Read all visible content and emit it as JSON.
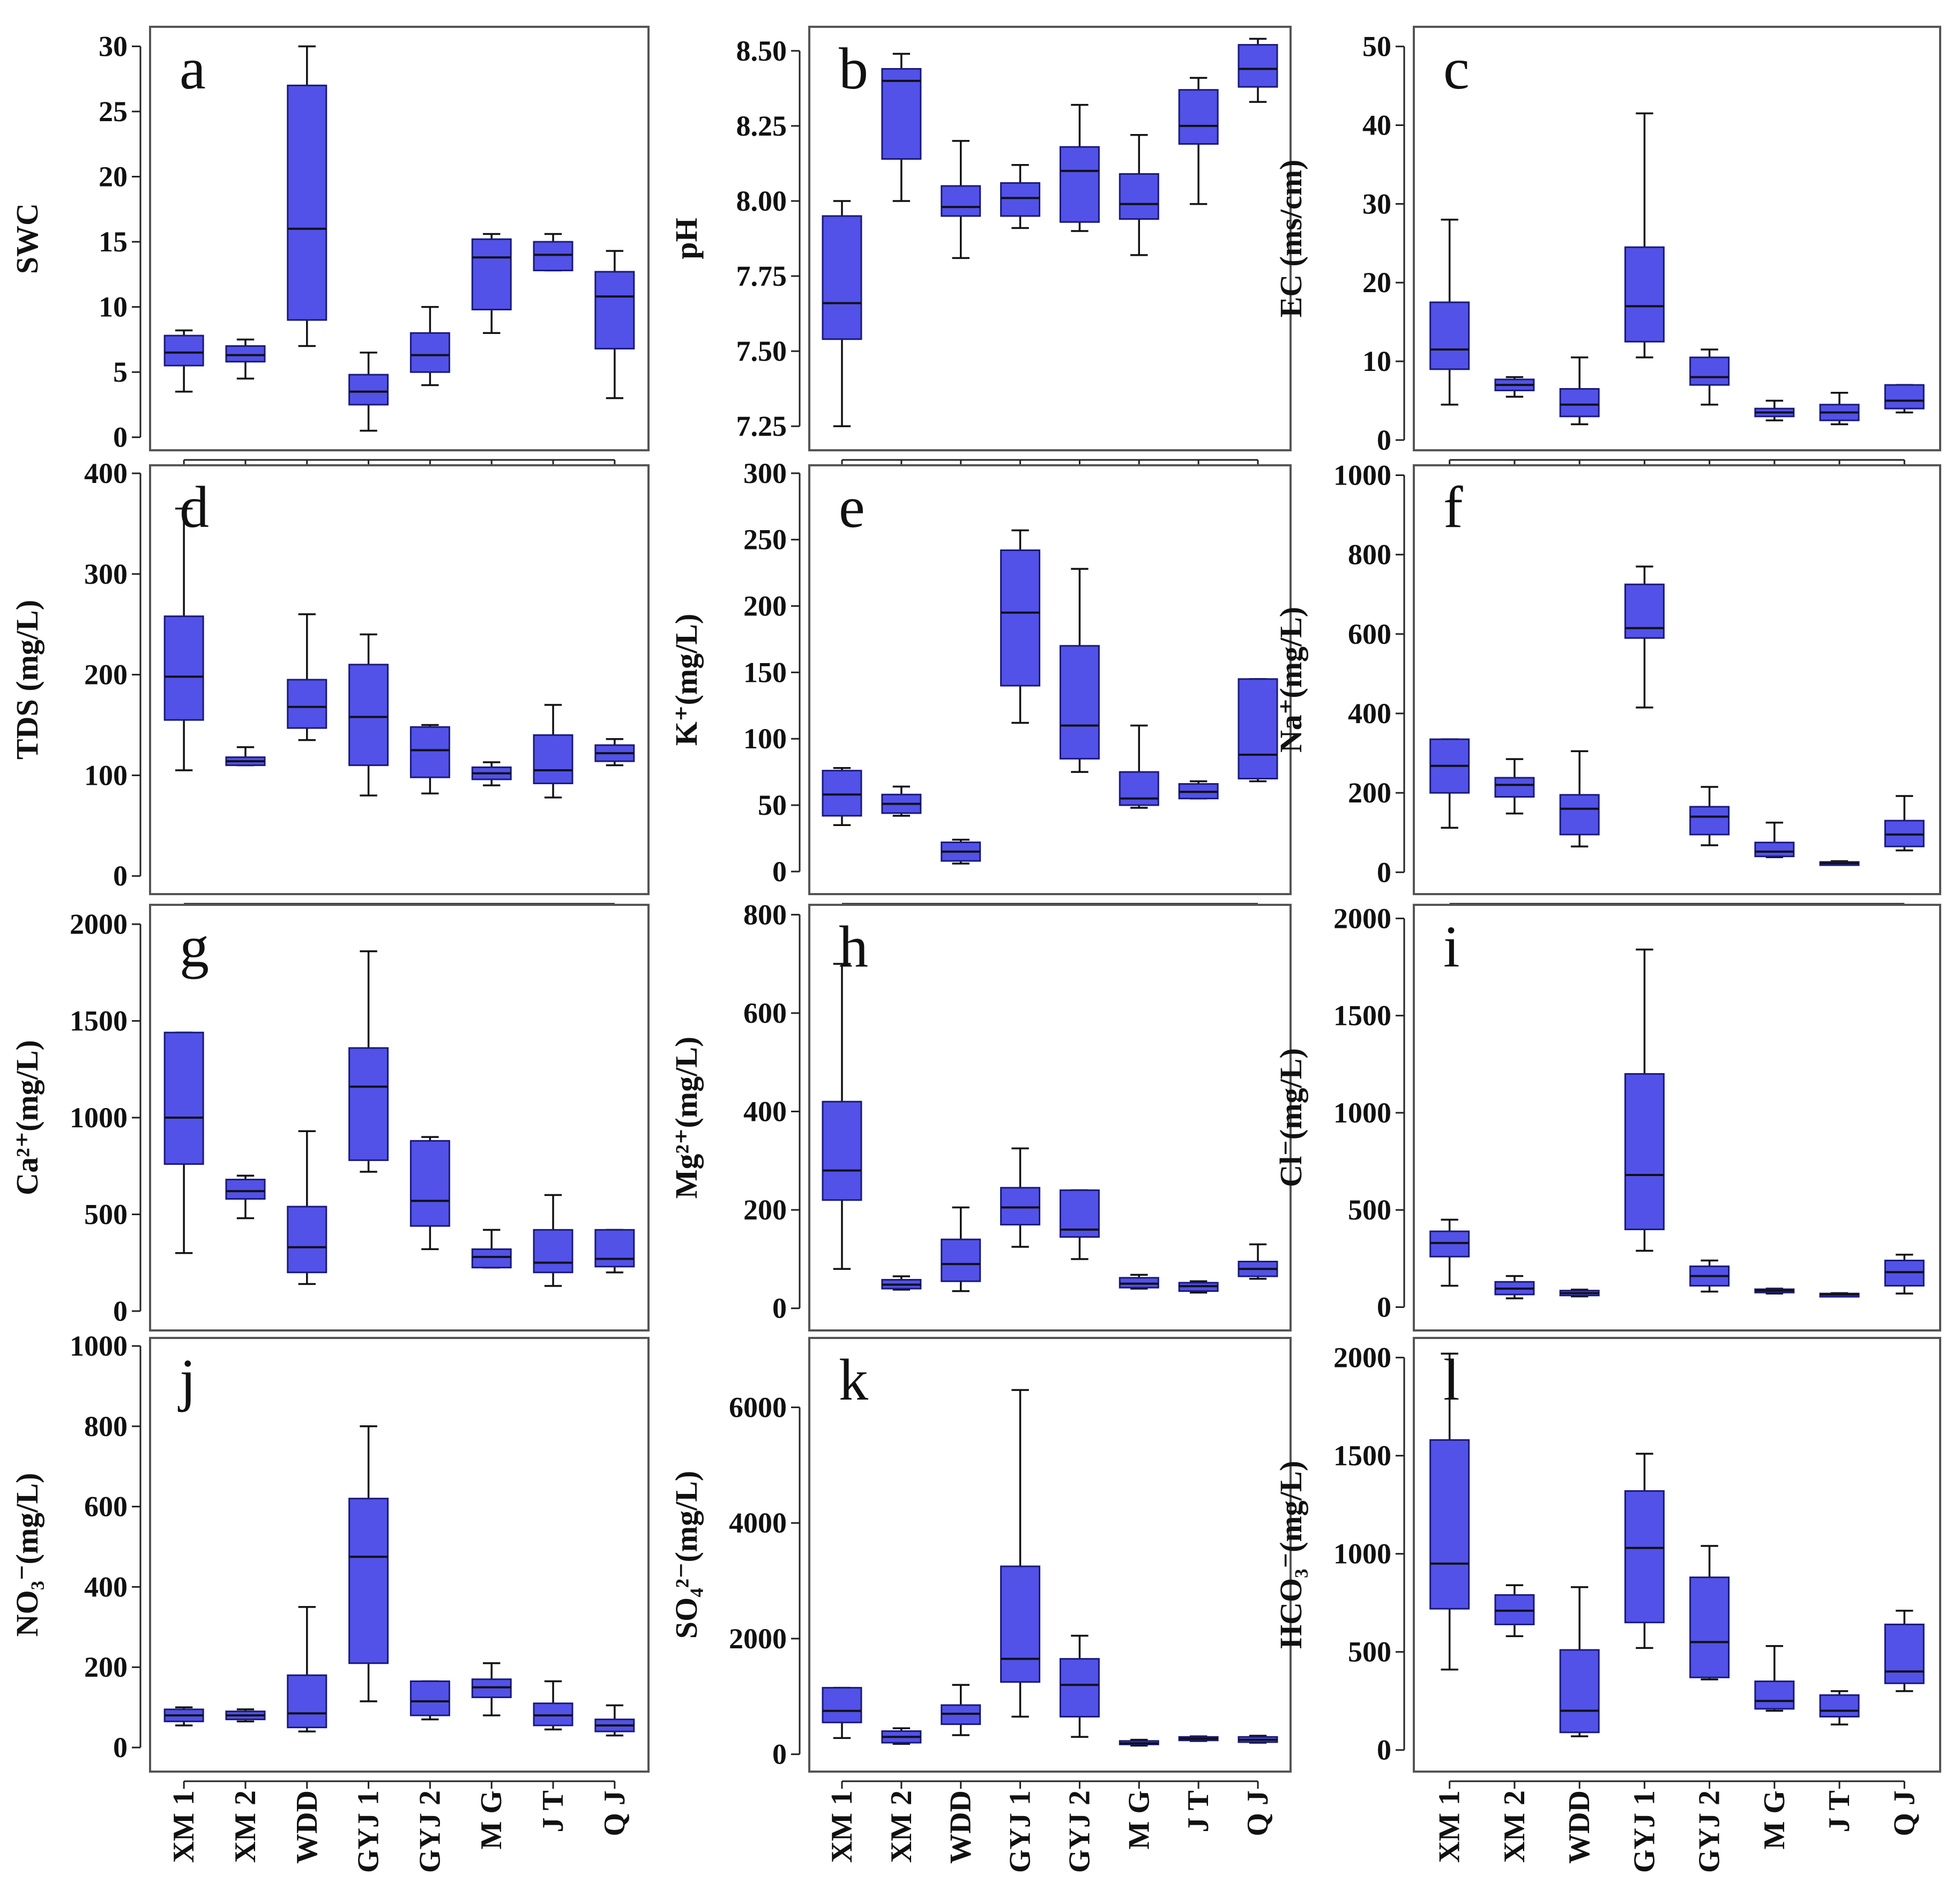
{
  "figure": {
    "box_color": "#5252E8",
    "box_edge_color": "#1A1A7A"
  },
  "chart_data": [
    {
      "type": "box",
      "panel": "a",
      "ylabel": "SWC",
      "yticks": [
        "0",
        "5",
        "10",
        "15",
        "20",
        "25",
        "30"
      ],
      "ylim": [
        -1,
        31.5
      ],
      "categories": [
        "XM 1",
        "XM 2",
        "WDD",
        "GYJ 1",
        "GYJ 2",
        "M  G",
        "J  T",
        "Q  J"
      ],
      "boxes": [
        {
          "min": 3.5,
          "q1": 5.5,
          "median": 6.5,
          "q3": 7.8,
          "max": 8.2
        },
        {
          "min": 4.5,
          "q1": 5.8,
          "median": 6.3,
          "q3": 7.0,
          "max": 7.5
        },
        {
          "min": 7.0,
          "q1": 9.0,
          "median": 16.0,
          "q3": 27.0,
          "max": 30.0
        },
        {
          "min": 0.5,
          "q1": 2.5,
          "median": 3.5,
          "q3": 4.8,
          "max": 6.5
        },
        {
          "min": 4.0,
          "q1": 5.0,
          "median": 6.3,
          "q3": 8.0,
          "max": 10.0
        },
        {
          "min": 8.0,
          "q1": 9.8,
          "median": 13.8,
          "q3": 15.2,
          "max": 15.6
        },
        {
          "min": 12.8,
          "q1": 12.8,
          "median": 14.0,
          "q3": 15.0,
          "max": 15.6
        },
        {
          "min": 3.0,
          "q1": 6.8,
          "median": 10.8,
          "q3": 12.7,
          "max": 14.3
        }
      ]
    },
    {
      "type": "box",
      "panel": "b",
      "ylabel": "pH",
      "yticks": [
        "7.25",
        "7.50",
        "7.75",
        "8.00",
        "8.25",
        "8.50"
      ],
      "ylim": [
        7.17,
        8.58
      ],
      "categories": [
        "XM 1",
        "XM 2",
        "WDD",
        "GYJ 1",
        "GYJ 2",
        "M  G",
        "J  T",
        "Q  J"
      ],
      "boxes": [
        {
          "min": 7.25,
          "q1": 7.54,
          "median": 7.66,
          "q3": 7.95,
          "max": 8.0
        },
        {
          "min": 8.0,
          "q1": 8.14,
          "median": 8.4,
          "q3": 8.44,
          "max": 8.49
        },
        {
          "min": 7.81,
          "q1": 7.95,
          "median": 7.98,
          "q3": 8.05,
          "max": 8.2
        },
        {
          "min": 7.91,
          "q1": 7.95,
          "median": 8.01,
          "q3": 8.06,
          "max": 8.12
        },
        {
          "min": 7.9,
          "q1": 7.93,
          "median": 8.1,
          "q3": 8.18,
          "max": 8.32
        },
        {
          "min": 7.82,
          "q1": 7.94,
          "median": 7.99,
          "q3": 8.09,
          "max": 8.22
        },
        {
          "min": 7.99,
          "q1": 8.19,
          "median": 8.25,
          "q3": 8.37,
          "max": 8.41
        },
        {
          "min": 8.33,
          "q1": 8.38,
          "median": 8.44,
          "q3": 8.52,
          "max": 8.54
        }
      ]
    },
    {
      "type": "box",
      "panel": "c",
      "ylabel": "EC (ms/cm)",
      "yticks": [
        "0",
        "10",
        "20",
        "30",
        "40",
        "50"
      ],
      "ylim": [
        -1.3,
        52.5
      ],
      "categories": [
        "XM 1",
        "XM 2",
        "WDD",
        "GYJ 1",
        "GYJ 2",
        "M  G",
        "J  T",
        "Q  J"
      ],
      "boxes": [
        {
          "min": 4.5,
          "q1": 9.0,
          "median": 11.5,
          "q3": 17.5,
          "max": 28.0
        },
        {
          "min": 5.5,
          "q1": 6.3,
          "median": 7.0,
          "q3": 7.7,
          "max": 8.0
        },
        {
          "min": 2.0,
          "q1": 3.0,
          "median": 4.5,
          "q3": 6.5,
          "max": 10.5
        },
        {
          "min": 10.5,
          "q1": 12.5,
          "median": 17.0,
          "q3": 24.5,
          "max": 41.5
        },
        {
          "min": 4.5,
          "q1": 7.0,
          "median": 8.0,
          "q3": 10.5,
          "max": 11.5
        },
        {
          "min": 2.5,
          "q1": 3.0,
          "median": 3.5,
          "q3": 4.0,
          "max": 5.0
        },
        {
          "min": 2.0,
          "q1": 2.5,
          "median": 3.5,
          "q3": 4.5,
          "max": 6.0
        },
        {
          "min": 3.5,
          "q1": 4.0,
          "median": 5.0,
          "q3": 7.0,
          "max": 7.0
        }
      ]
    },
    {
      "type": "box",
      "panel": "d",
      "ylabel": "TDS (mg/L)",
      "yticks": [
        "0",
        "100",
        "200",
        "300",
        "400"
      ],
      "ylim": [
        -18,
        408
      ],
      "categories": [
        "XM 1",
        "XM 2",
        "WDD",
        "GYJ 1",
        "GYJ 2",
        "M  G",
        "J  T",
        "Q  J"
      ],
      "boxes": [
        {
          "min": 105,
          "q1": 155,
          "median": 198,
          "q3": 258,
          "max": 365
        },
        {
          "min": 110,
          "q1": 110,
          "median": 114,
          "q3": 118,
          "max": 128
        },
        {
          "min": 135,
          "q1": 147,
          "median": 168,
          "q3": 195,
          "max": 260
        },
        {
          "min": 80,
          "q1": 110,
          "median": 158,
          "q3": 210,
          "max": 240
        },
        {
          "min": 82,
          "q1": 98,
          "median": 125,
          "q3": 148,
          "max": 150
        },
        {
          "min": 90,
          "q1": 96,
          "median": 102,
          "q3": 108,
          "max": 113
        },
        {
          "min": 78,
          "q1": 92,
          "median": 105,
          "q3": 140,
          "max": 170
        },
        {
          "min": 110,
          "q1": 114,
          "median": 122,
          "q3": 130,
          "max": 136
        }
      ]
    },
    {
      "type": "box",
      "panel": "e",
      "ylabel": "K⁺(mg/L)",
      "yticks": [
        "0",
        "50",
        "100",
        "150",
        "200",
        "250",
        "300"
      ],
      "ylim": [
        -17,
        306
      ],
      "categories": [
        "XM 1",
        "XM 2",
        "WDD",
        "GYJ 1",
        "GYJ 2",
        "M  G",
        "J  T",
        "Q  J"
      ],
      "boxes": [
        {
          "min": 35,
          "q1": 42,
          "median": 58,
          "q3": 76,
          "max": 78
        },
        {
          "min": 42,
          "q1": 44,
          "median": 51,
          "q3": 58,
          "max": 64
        },
        {
          "min": 6,
          "q1": 8,
          "median": 15,
          "q3": 22,
          "max": 24
        },
        {
          "min": 112,
          "q1": 140,
          "median": 195,
          "q3": 242,
          "max": 257
        },
        {
          "min": 75,
          "q1": 85,
          "median": 110,
          "q3": 170,
          "max": 228
        },
        {
          "min": 48,
          "q1": 50,
          "median": 55,
          "q3": 75,
          "max": 110
        },
        {
          "min": 55,
          "q1": 55,
          "median": 60,
          "q3": 66,
          "max": 68
        },
        {
          "min": 68,
          "q1": 70,
          "median": 88,
          "q3": 145,
          "max": 145
        }
      ]
    },
    {
      "type": "box",
      "panel": "f",
      "ylabel": "Na⁺(mg/L)",
      "yticks": [
        "0",
        "200",
        "400",
        "600",
        "800",
        "1000"
      ],
      "ylim": [
        -55,
        1025
      ],
      "categories": [
        "XM 1",
        "XM 2",
        "WDD",
        "GYJ 1",
        "GYJ 2",
        "M  G",
        "J  T",
        "Q  J"
      ],
      "boxes": [
        {
          "min": 112,
          "q1": 200,
          "median": 268,
          "q3": 335,
          "max": 335
        },
        {
          "min": 148,
          "q1": 190,
          "median": 220,
          "q3": 238,
          "max": 285
        },
        {
          "min": 65,
          "q1": 95,
          "median": 160,
          "q3": 195,
          "max": 305
        },
        {
          "min": 415,
          "q1": 590,
          "median": 615,
          "q3": 725,
          "max": 770
        },
        {
          "min": 68,
          "q1": 95,
          "median": 140,
          "q3": 165,
          "max": 215
        },
        {
          "min": 38,
          "q1": 40,
          "median": 52,
          "q3": 75,
          "max": 125
        },
        {
          "min": 20,
          "q1": 20,
          "median": 23,
          "q3": 26,
          "max": 28
        },
        {
          "min": 55,
          "q1": 65,
          "median": 95,
          "q3": 130,
          "max": 192
        }
      ]
    },
    {
      "type": "box",
      "panel": "g",
      "ylabel": "Ca²⁺(mg/L)",
      "yticks": [
        "0",
        "500",
        "1000",
        "1500",
        "2000"
      ],
      "ylim": [
        -100,
        2100
      ],
      "categories": [
        "XM 1",
        "XM 2",
        "WDD",
        "GYJ 1",
        "GYJ 2",
        "M  G",
        "J  T",
        "Q  J"
      ],
      "boxes": [
        {
          "min": 300,
          "q1": 760,
          "median": 1000,
          "q3": 1440,
          "max": 1440
        },
        {
          "min": 480,
          "q1": 580,
          "median": 620,
          "q3": 680,
          "max": 700
        },
        {
          "min": 140,
          "q1": 200,
          "median": 330,
          "q3": 540,
          "max": 930
        },
        {
          "min": 720,
          "q1": 780,
          "median": 1160,
          "q3": 1360,
          "max": 1860
        },
        {
          "min": 320,
          "q1": 440,
          "median": 570,
          "q3": 880,
          "max": 900
        },
        {
          "min": 225,
          "q1": 225,
          "median": 280,
          "q3": 320,
          "max": 420
        },
        {
          "min": 130,
          "q1": 200,
          "median": 250,
          "q3": 420,
          "max": 600
        },
        {
          "min": 200,
          "q1": 230,
          "median": 270,
          "q3": 420,
          "max": 420
        }
      ]
    },
    {
      "type": "box",
      "panel": "h",
      "ylabel": "Mg²⁺(mg/L)",
      "yticks": [
        "0",
        "200",
        "400",
        "600",
        "800"
      ],
      "ylim": [
        -45,
        820
      ],
      "categories": [
        "XM 1",
        "XM 2",
        "WDD",
        "GYJ 1",
        "GYJ 2",
        "M  G",
        "J  T",
        "Q  J"
      ],
      "boxes": [
        {
          "min": 80,
          "q1": 220,
          "median": 280,
          "q3": 420,
          "max": 700
        },
        {
          "min": 38,
          "q1": 40,
          "median": 48,
          "q3": 58,
          "max": 65
        },
        {
          "min": 35,
          "q1": 55,
          "median": 90,
          "q3": 140,
          "max": 205
        },
        {
          "min": 125,
          "q1": 170,
          "median": 205,
          "q3": 245,
          "max": 325
        },
        {
          "min": 100,
          "q1": 145,
          "median": 160,
          "q3": 240,
          "max": 240
        },
        {
          "min": 40,
          "q1": 42,
          "median": 50,
          "q3": 62,
          "max": 68
        },
        {
          "min": 32,
          "q1": 35,
          "median": 45,
          "q3": 52,
          "max": 55
        },
        {
          "min": 60,
          "q1": 65,
          "median": 80,
          "q3": 95,
          "max": 130
        }
      ]
    },
    {
      "type": "box",
      "panel": "i",
      "ylabel": "Cl⁻(mg/L)",
      "yticks": [
        "0",
        "500",
        "1000",
        "1500",
        "2000"
      ],
      "ylim": [
        -120,
        2070
      ],
      "categories": [
        "XM 1",
        "XM 2",
        "WDD",
        "GYJ 1",
        "GYJ 2",
        "M  G",
        "J  T",
        "Q  J"
      ],
      "boxes": [
        {
          "min": 110,
          "q1": 260,
          "median": 330,
          "q3": 390,
          "max": 450
        },
        {
          "min": 45,
          "q1": 65,
          "median": 95,
          "q3": 130,
          "max": 160
        },
        {
          "min": 55,
          "q1": 60,
          "median": 72,
          "q3": 85,
          "max": 90
        },
        {
          "min": 290,
          "q1": 400,
          "median": 680,
          "q3": 1200,
          "max": 1840
        },
        {
          "min": 80,
          "q1": 110,
          "median": 160,
          "q3": 210,
          "max": 240
        },
        {
          "min": 70,
          "q1": 75,
          "median": 85,
          "q3": 92,
          "max": 95
        },
        {
          "min": 55,
          "q1": 60,
          "median": 65,
          "q3": 70,
          "max": 72
        },
        {
          "min": 70,
          "q1": 110,
          "median": 180,
          "q3": 240,
          "max": 270
        }
      ]
    },
    {
      "type": "box",
      "panel": "j",
      "ylabel": "NO₃⁻(mg/L)",
      "yticks": [
        "0",
        "200",
        "400",
        "600",
        "800",
        "1000"
      ],
      "ylim": [
        -60,
        1020
      ],
      "categories": [
        "XM 1",
        "XM 2",
        "WDD",
        "GYJ 1",
        "GYJ 2",
        "M  G",
        "J  T",
        "Q  J"
      ],
      "boxes": [
        {
          "min": 55,
          "q1": 65,
          "median": 80,
          "q3": 95,
          "max": 100
        },
        {
          "min": 65,
          "q1": 70,
          "median": 80,
          "q3": 90,
          "max": 95
        },
        {
          "min": 40,
          "q1": 50,
          "median": 85,
          "q3": 180,
          "max": 350
        },
        {
          "min": 115,
          "q1": 210,
          "median": 475,
          "q3": 620,
          "max": 800
        },
        {
          "min": 70,
          "q1": 80,
          "median": 115,
          "q3": 165,
          "max": 165
        },
        {
          "min": 80,
          "q1": 125,
          "median": 150,
          "q3": 170,
          "max": 210
        },
        {
          "min": 45,
          "q1": 55,
          "median": 80,
          "q3": 110,
          "max": 165
        },
        {
          "min": 30,
          "q1": 40,
          "median": 55,
          "q3": 70,
          "max": 105
        }
      ]
    },
    {
      "type": "box",
      "panel": "k",
      "ylabel": "SO₄²⁻(mg/L)",
      "yticks": [
        "0",
        "2000",
        "4000",
        "6000"
      ],
      "ylim": [
        -300,
        7200
      ],
      "categories": [
        "XM 1",
        "XM 2",
        "WDD",
        "GYJ 1",
        "GYJ 2",
        "M  G",
        "J  T",
        "Q  J"
      ],
      "boxes": [
        {
          "min": 280,
          "q1": 550,
          "median": 750,
          "q3": 1150,
          "max": 1150
        },
        {
          "min": 180,
          "q1": 200,
          "median": 300,
          "q3": 400,
          "max": 450
        },
        {
          "min": 330,
          "q1": 520,
          "median": 700,
          "q3": 850,
          "max": 1200
        },
        {
          "min": 650,
          "q1": 1250,
          "median": 1650,
          "q3": 3250,
          "max": 6300
        },
        {
          "min": 300,
          "q1": 650,
          "median": 1200,
          "q3": 1650,
          "max": 2050
        },
        {
          "min": 150,
          "q1": 170,
          "median": 190,
          "q3": 230,
          "max": 250
        },
        {
          "min": 230,
          "q1": 240,
          "median": 270,
          "q3": 300,
          "max": 310
        },
        {
          "min": 200,
          "q1": 210,
          "median": 250,
          "q3": 300,
          "max": 320
        }
      ]
    },
    {
      "type": "box",
      "panel": "l",
      "ylabel": "HCO₃⁻(mg/L)",
      "yticks": [
        "0",
        "500",
        "1000",
        "1500",
        "2000"
      ],
      "ylim": [
        -110,
        2100
      ],
      "categories": [
        "XM 1",
        "XM 2",
        "WDD",
        "GYJ 1",
        "GYJ 2",
        "M  G",
        "J  T",
        "Q  J"
      ],
      "boxes": [
        {
          "min": 410,
          "q1": 720,
          "median": 950,
          "q3": 1580,
          "max": 2020
        },
        {
          "min": 580,
          "q1": 640,
          "median": 710,
          "q3": 790,
          "max": 840
        },
        {
          "min": 70,
          "q1": 90,
          "median": 200,
          "q3": 510,
          "max": 830
        },
        {
          "min": 520,
          "q1": 650,
          "median": 1030,
          "q3": 1320,
          "max": 1510
        },
        {
          "min": 360,
          "q1": 370,
          "median": 550,
          "q3": 880,
          "max": 1040
        },
        {
          "min": 200,
          "q1": 210,
          "median": 250,
          "q3": 350,
          "max": 530
        },
        {
          "min": 130,
          "q1": 170,
          "median": 200,
          "q3": 280,
          "max": 300
        },
        {
          "min": 300,
          "q1": 340,
          "median": 400,
          "q3": 640,
          "max": 710
        }
      ]
    }
  ]
}
